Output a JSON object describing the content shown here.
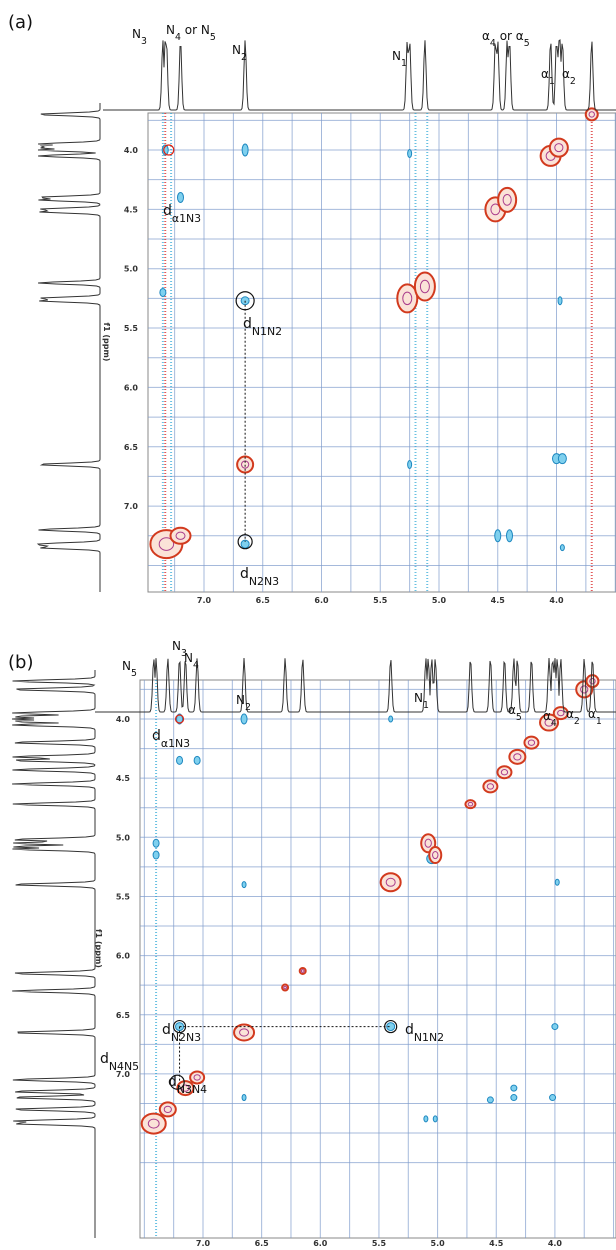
{
  "panels": [
    {
      "label": "(a)",
      "x_ticks": [
        "7.0",
        "6.5",
        "6.0",
        "5.5",
        "5.0",
        "4.5",
        "4.0"
      ],
      "y_ticks": [
        "4.0",
        "4.5",
        "5.0",
        "5.5",
        "6.0",
        "6.5",
        "7.0"
      ],
      "y_axis_label": "f1 (ppm)",
      "peak_labels": [
        [
          [
            "N",
            "3"
          ]
        ],
        [
          [
            "N",
            "4"
          ],
          [
            " or N",
            "5"
          ]
        ],
        [
          [
            "N",
            "2"
          ]
        ],
        [
          [
            "N",
            "1"
          ]
        ],
        [
          [
            "α",
            "4"
          ],
          [
            " or α",
            "5"
          ]
        ],
        [
          [
            "α",
            "1"
          ]
        ],
        [
          [
            "α",
            "2"
          ]
        ]
      ],
      "annotations": [
        [
          [
            "d",
            "α1N3"
          ]
        ],
        [
          [
            "d",
            "N1N2"
          ]
        ],
        [
          [
            "d",
            "N2N3"
          ]
        ]
      ]
    },
    {
      "label": "(b)",
      "x_ticks": [
        "7.0",
        "6.5",
        "6.0",
        "5.5",
        "5.0",
        "4.5",
        "4.0"
      ],
      "y_ticks": [
        "4.0",
        "4.5",
        "5.0",
        "5.5",
        "6.0",
        "6.5",
        "7.0"
      ],
      "y_axis_label": "f1 (ppm)",
      "peak_labels": [
        [
          [
            "N",
            "5"
          ]
        ],
        [
          [
            "N",
            "3"
          ]
        ],
        [
          [
            "N",
            "4"
          ]
        ],
        [
          [
            "N",
            "2"
          ]
        ],
        [
          [
            "N",
            "1"
          ]
        ],
        [
          [
            "α",
            "5"
          ]
        ],
        [
          [
            "α",
            "4"
          ]
        ],
        [
          [
            "α",
            "2"
          ]
        ],
        [
          [
            "α",
            "1"
          ]
        ]
      ],
      "annotations": [
        [
          [
            "d",
            "α1N3"
          ]
        ],
        [
          [
            "d",
            "N2N3"
          ]
        ],
        [
          [
            "d",
            "N1N2"
          ]
        ],
        [
          [
            "d",
            "N4N5"
          ]
        ],
        [
          [
            "d",
            "N3N4"
          ]
        ]
      ]
    }
  ]
}
